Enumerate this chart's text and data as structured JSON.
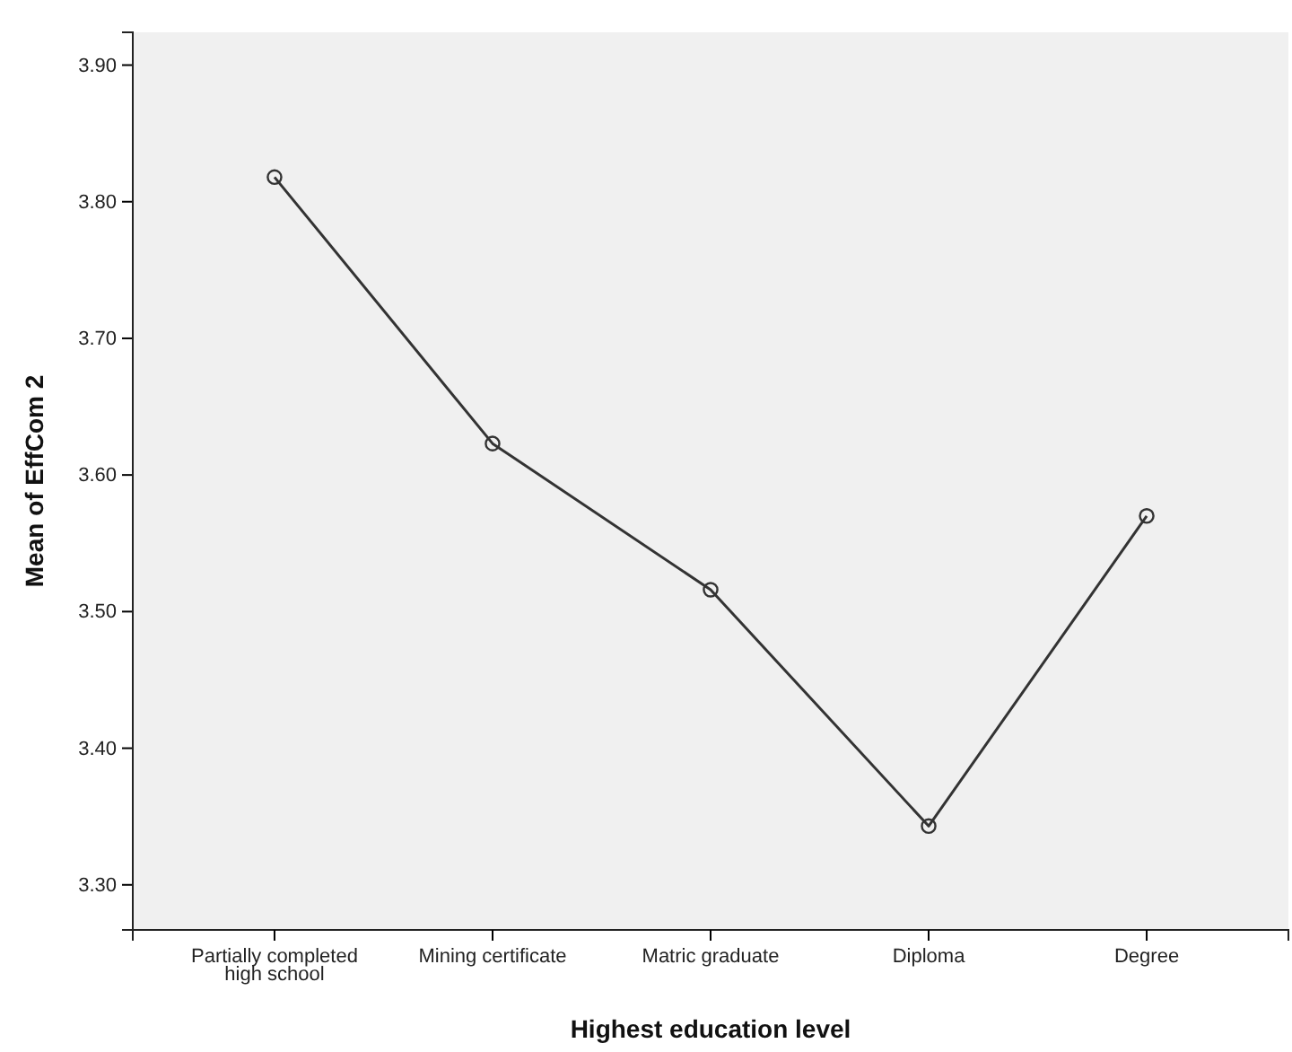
{
  "chart_data": {
    "type": "line",
    "xlabel": "Highest education level",
    "ylabel": "Mean of EffCom 2",
    "categories": [
      "Partially completed\nhigh school",
      "Mining certificate",
      "Matric graduate",
      "Diploma",
      "Degree"
    ],
    "series": [
      {
        "color": "#333333",
        "values": [
          3.818,
          3.623,
          3.516,
          3.343,
          3.57
        ]
      }
    ],
    "ylim": [
      3.267,
      3.924
    ],
    "yticks": [
      {
        "value": 3.3,
        "label": "3.30"
      },
      {
        "value": 3.4,
        "label": "3.40"
      },
      {
        "value": 3.5,
        "label": "3.50"
      },
      {
        "value": 3.6,
        "label": "3.60"
      },
      {
        "value": 3.7,
        "label": "3.70"
      },
      {
        "value": 3.8,
        "label": "3.80"
      },
      {
        "value": 3.9,
        "label": "3.90"
      }
    ],
    "grid": false,
    "marker": "circle",
    "line_style": "solid"
  }
}
